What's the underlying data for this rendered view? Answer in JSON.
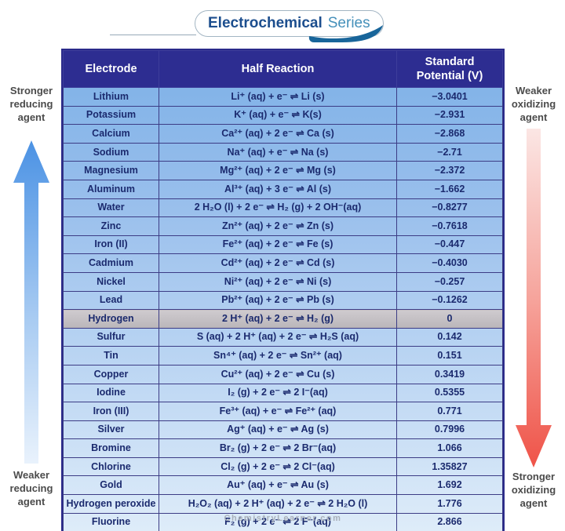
{
  "title": {
    "part1": "Electrochemical",
    "part2": "Series"
  },
  "side_labels": {
    "left_top": "Stronger reducing agent",
    "left_bottom": "Weaker reducing agent",
    "right_top": "Weaker oxidizing agent",
    "right_bottom": "Stronger oxidizing agent"
  },
  "table": {
    "headers": [
      "Electrode",
      "Half Reaction",
      "Standard Potential (V)"
    ],
    "rows": [
      {
        "electrode": "Lithium",
        "reaction": "Li⁺ (aq) + e⁻  ⇌  Li (s)",
        "potential": "−3.0401",
        "highlight": false
      },
      {
        "electrode": "Potassium",
        "reaction": "K⁺ (aq) + e⁻  ⇌  K(s)",
        "potential": "−2.931",
        "highlight": false
      },
      {
        "electrode": "Calcium",
        "reaction": "Ca²⁺ (aq) + 2 e⁻  ⇌  Ca (s)",
        "potential": "−2.868",
        "highlight": false
      },
      {
        "electrode": "Sodium",
        "reaction": "Na⁺ (aq) + e⁻  ⇌  Na (s)",
        "potential": "−2.71",
        "highlight": false
      },
      {
        "electrode": "Magnesium",
        "reaction": "Mg²⁺ (aq) + 2 e⁻  ⇌  Mg (s)",
        "potential": "−2.372",
        "highlight": false
      },
      {
        "electrode": "Aluminum",
        "reaction": "Al³⁺ (aq) + 3 e⁻  ⇌  Al (s)",
        "potential": "−1.662",
        "highlight": false
      },
      {
        "electrode": "Water",
        "reaction": "2 H₂O (l) + 2 e⁻  ⇌  H₂ (g) + 2 OH⁻(aq)",
        "potential": "−0.8277",
        "highlight": false
      },
      {
        "electrode": "Zinc",
        "reaction": "Zn²⁺ (aq) + 2 e⁻  ⇌  Zn (s)",
        "potential": "−0.7618",
        "highlight": false
      },
      {
        "electrode": "Iron (II)",
        "reaction": "Fe²⁺ (aq) + 2 e⁻  ⇌  Fe (s)",
        "potential": "−0.447",
        "highlight": false
      },
      {
        "electrode": "Cadmium",
        "reaction": "Cd²⁺ (aq) + 2 e⁻  ⇌  Cd (s)",
        "potential": "−0.4030",
        "highlight": false
      },
      {
        "electrode": "Nickel",
        "reaction": "Ni²⁺ (aq) + 2 e⁻  ⇌  Ni (s)",
        "potential": "−0.257",
        "highlight": false
      },
      {
        "electrode": "Lead",
        "reaction": "Pb²⁺ (aq) + 2 e⁻  ⇌  Pb (s)",
        "potential": "−0.1262",
        "highlight": false
      },
      {
        "electrode": "Hydrogen",
        "reaction": "2 H⁺ (aq) + 2 e⁻  ⇌  H₂ (g)",
        "potential": "0",
        "highlight": true
      },
      {
        "electrode": "Sulfur",
        "reaction": "S (aq) + 2 H⁺ (aq) + 2 e⁻  ⇌  H₂S (aq)",
        "potential": "0.142",
        "highlight": false
      },
      {
        "electrode": "Tin",
        "reaction": "Sn⁴⁺ (aq) + 2 e⁻  ⇌  Sn²⁺ (aq)",
        "potential": "0.151",
        "highlight": false
      },
      {
        "electrode": "Copper",
        "reaction": "Cu²⁺ (aq) + 2 e⁻  ⇌  Cu (s)",
        "potential": "0.3419",
        "highlight": false
      },
      {
        "electrode": "Iodine",
        "reaction": "I₂ (g) + 2 e⁻  ⇌  2 I⁻(aq)",
        "potential": "0.5355",
        "highlight": false
      },
      {
        "electrode": "Iron (III)",
        "reaction": "Fe³⁺ (aq) + e⁻  ⇌  Fe²⁺ (aq)",
        "potential": "0.771",
        "highlight": false
      },
      {
        "electrode": "Silver",
        "reaction": "Ag⁺ (aq) + e⁻  ⇌  Ag (s)",
        "potential": "0.7996",
        "highlight": false
      },
      {
        "electrode": "Bromine",
        "reaction": "Br₂ (g) + 2 e⁻  ⇌  2 Br⁻(aq)",
        "potential": "1.066",
        "highlight": false
      },
      {
        "electrode": "Chlorine",
        "reaction": "Cl₂ (g) + 2 e⁻  ⇌  2 Cl⁻(aq)",
        "potential": "1.35827",
        "highlight": false
      },
      {
        "electrode": "Gold",
        "reaction": "Au⁺ (aq) + e⁻  ⇌  Au (s)",
        "potential": "1.692",
        "highlight": false
      },
      {
        "electrode": "Hydrogen peroxide",
        "reaction": "H₂O₂ (aq) + 2 H⁺ (aq) + 2 e⁻  ⇌  2 H₂O (l)",
        "potential": "1.776",
        "highlight": false
      },
      {
        "electrode": "Fluorine",
        "reaction": "F₂ (g) + 2 e⁻  ⇌  2 F⁻(aq)",
        "potential": "2.866",
        "highlight": false
      }
    ]
  },
  "footer": "ChemistryLearner.com",
  "colors": {
    "header_bg": "#2d2d91",
    "table_text": "#1b2a6e",
    "body_gradient_top": "#7cb0e7",
    "body_gradient_bottom": "#deecf9",
    "highlight_row": "#c1bdc1",
    "blue_arrow": "#4b92e4",
    "red_arrow": "#ef5348",
    "title_part1_color": "#1c4e8e",
    "title_part2_color": "#4590ba"
  },
  "chart_data": {
    "type": "table",
    "title": "Electrochemical Series",
    "columns": [
      "Electrode",
      "Half Reaction",
      "Standard Potential (V)"
    ],
    "rows": [
      [
        "Lithium",
        "Li⁺ (aq) + e⁻ ⇌ Li (s)",
        -3.0401
      ],
      [
        "Potassium",
        "K⁺ (aq) + e⁻ ⇌ K(s)",
        -2.931
      ],
      [
        "Calcium",
        "Ca²⁺ (aq) + 2 e⁻ ⇌ Ca (s)",
        -2.868
      ],
      [
        "Sodium",
        "Na⁺ (aq) + e⁻ ⇌ Na (s)",
        -2.71
      ],
      [
        "Magnesium",
        "Mg²⁺ (aq) + 2 e⁻ ⇌ Mg (s)",
        -2.372
      ],
      [
        "Aluminum",
        "Al³⁺ (aq) + 3 e⁻ ⇌ Al (s)",
        -1.662
      ],
      [
        "Water",
        "2 H₂O (l) + 2 e⁻ ⇌ H₂ (g) + 2 OH⁻(aq)",
        -0.8277
      ],
      [
        "Zinc",
        "Zn²⁺ (aq) + 2 e⁻ ⇌ Zn (s)",
        -0.7618
      ],
      [
        "Iron (II)",
        "Fe²⁺ (aq) + 2 e⁻ ⇌ Fe (s)",
        -0.447
      ],
      [
        "Cadmium",
        "Cd²⁺ (aq) + 2 e⁻ ⇌ Cd (s)",
        -0.403
      ],
      [
        "Nickel",
        "Ni²⁺ (aq) + 2 e⁻ ⇌ Ni (s)",
        -0.257
      ],
      [
        "Lead",
        "Pb²⁺ (aq) + 2 e⁻ ⇌ Pb (s)",
        -0.1262
      ],
      [
        "Hydrogen",
        "2 H⁺ (aq) + 2 e⁻ ⇌ H₂ (g)",
        0
      ],
      [
        "Sulfur",
        "S (aq) + 2 H⁺ (aq) + 2 e⁻ ⇌ H₂S (aq)",
        0.142
      ],
      [
        "Tin",
        "Sn⁴⁺ (aq) + 2 e⁻ ⇌ Sn²⁺ (aq)",
        0.151
      ],
      [
        "Copper",
        "Cu²⁺ (aq) + 2 e⁻ ⇌ Cu (s)",
        0.3419
      ],
      [
        "Iodine",
        "I₂ (g) + 2 e⁻ ⇌ 2 I⁻(aq)",
        0.5355
      ],
      [
        "Iron (III)",
        "Fe³⁺ (aq) + e⁻ ⇌ Fe²⁺ (aq)",
        0.771
      ],
      [
        "Silver",
        "Ag⁺ (aq) + e⁻ ⇌ Ag (s)",
        0.7996
      ],
      [
        "Bromine",
        "Br₂ (g) + 2 e⁻ ⇌ 2 Br⁻(aq)",
        1.066
      ],
      [
        "Chlorine",
        "Cl₂ (g) + 2 e⁻ ⇌ 2 Cl⁻(aq)",
        1.35827
      ],
      [
        "Gold",
        "Au⁺ (aq) + e⁻ ⇌ Au (s)",
        1.692
      ],
      [
        "Hydrogen peroxide",
        "H₂O₂ (aq) + 2 H⁺ (aq) + 2 e⁻ ⇌ 2 H₂O (l)",
        1.776
      ],
      [
        "Fluorine",
        "F₂ (g) + 2 e⁻ ⇌ 2 F⁻(aq)",
        2.866
      ]
    ],
    "annotations": [
      "Stronger reducing agent (top left, arrow up)",
      "Weaker reducing agent (bottom left)",
      "Weaker oxidizing agent (top right)",
      "Stronger oxidizing agent (bottom right, arrow down)"
    ],
    "highlighted_row": "Hydrogen"
  }
}
